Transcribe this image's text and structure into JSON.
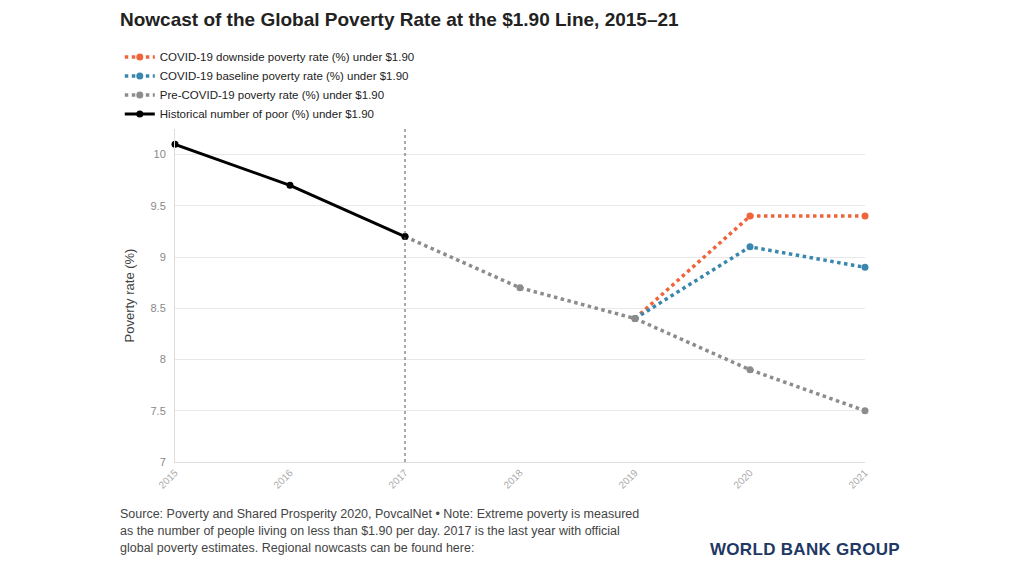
{
  "chart_data": {
    "type": "line",
    "title": "Nowcast of the Global Poverty Rate at the $1.90 Line, 2015–21",
    "y_label": "Poverty rate (%)",
    "x": [
      2015,
      2016,
      2017,
      2018,
      2019,
      2020,
      2021
    ],
    "series": [
      {
        "name": "COVID-19 downside poverty rate (%) under $1.90",
        "color": "#f0643c",
        "line_style": "dotted",
        "marker": "circle",
        "values": [
          null,
          null,
          null,
          null,
          8.4,
          9.4,
          9.4
        ]
      },
      {
        "name": "COVID-19 baseline poverty rate (%) under $1.90",
        "color": "#3a87ad",
        "line_style": "dotted",
        "marker": "circle",
        "values": [
          null,
          null,
          null,
          null,
          8.4,
          9.1,
          8.9
        ]
      },
      {
        "name": "Pre-COVID-19 poverty rate (%) under $1.90",
        "color": "#8c8c8c",
        "line_style": "dotted",
        "marker": "circle",
        "values": [
          null,
          null,
          9.2,
          8.7,
          8.4,
          7.9,
          7.5
        ]
      },
      {
        "name": "Historical number of poor (%) under $1.90",
        "color": "#000000",
        "line_style": "solid",
        "marker": "circle",
        "values": [
          10.1,
          9.7,
          9.2,
          null,
          null,
          null,
          null
        ]
      }
    ],
    "xlim": [
      2015,
      2021
    ],
    "xticks": [
      2015,
      2016,
      2017,
      2018,
      2019,
      2020,
      2021
    ],
    "ylim": [
      7,
      10.25
    ],
    "yticks": [
      7,
      7.5,
      8,
      8.5,
      9,
      9.5,
      10
    ],
    "grid": true,
    "legend": "top left",
    "source": "Source: Poverty and Shared Prosperity 2020, PovcalNet • Note: Extreme poverty is measured as the number of people living on less than $1.90 per day. 2017 is the last year with official global poverty estimates. Regional nowcasts can be found here:",
    "logo": "WORLD BANK GROUP"
  }
}
